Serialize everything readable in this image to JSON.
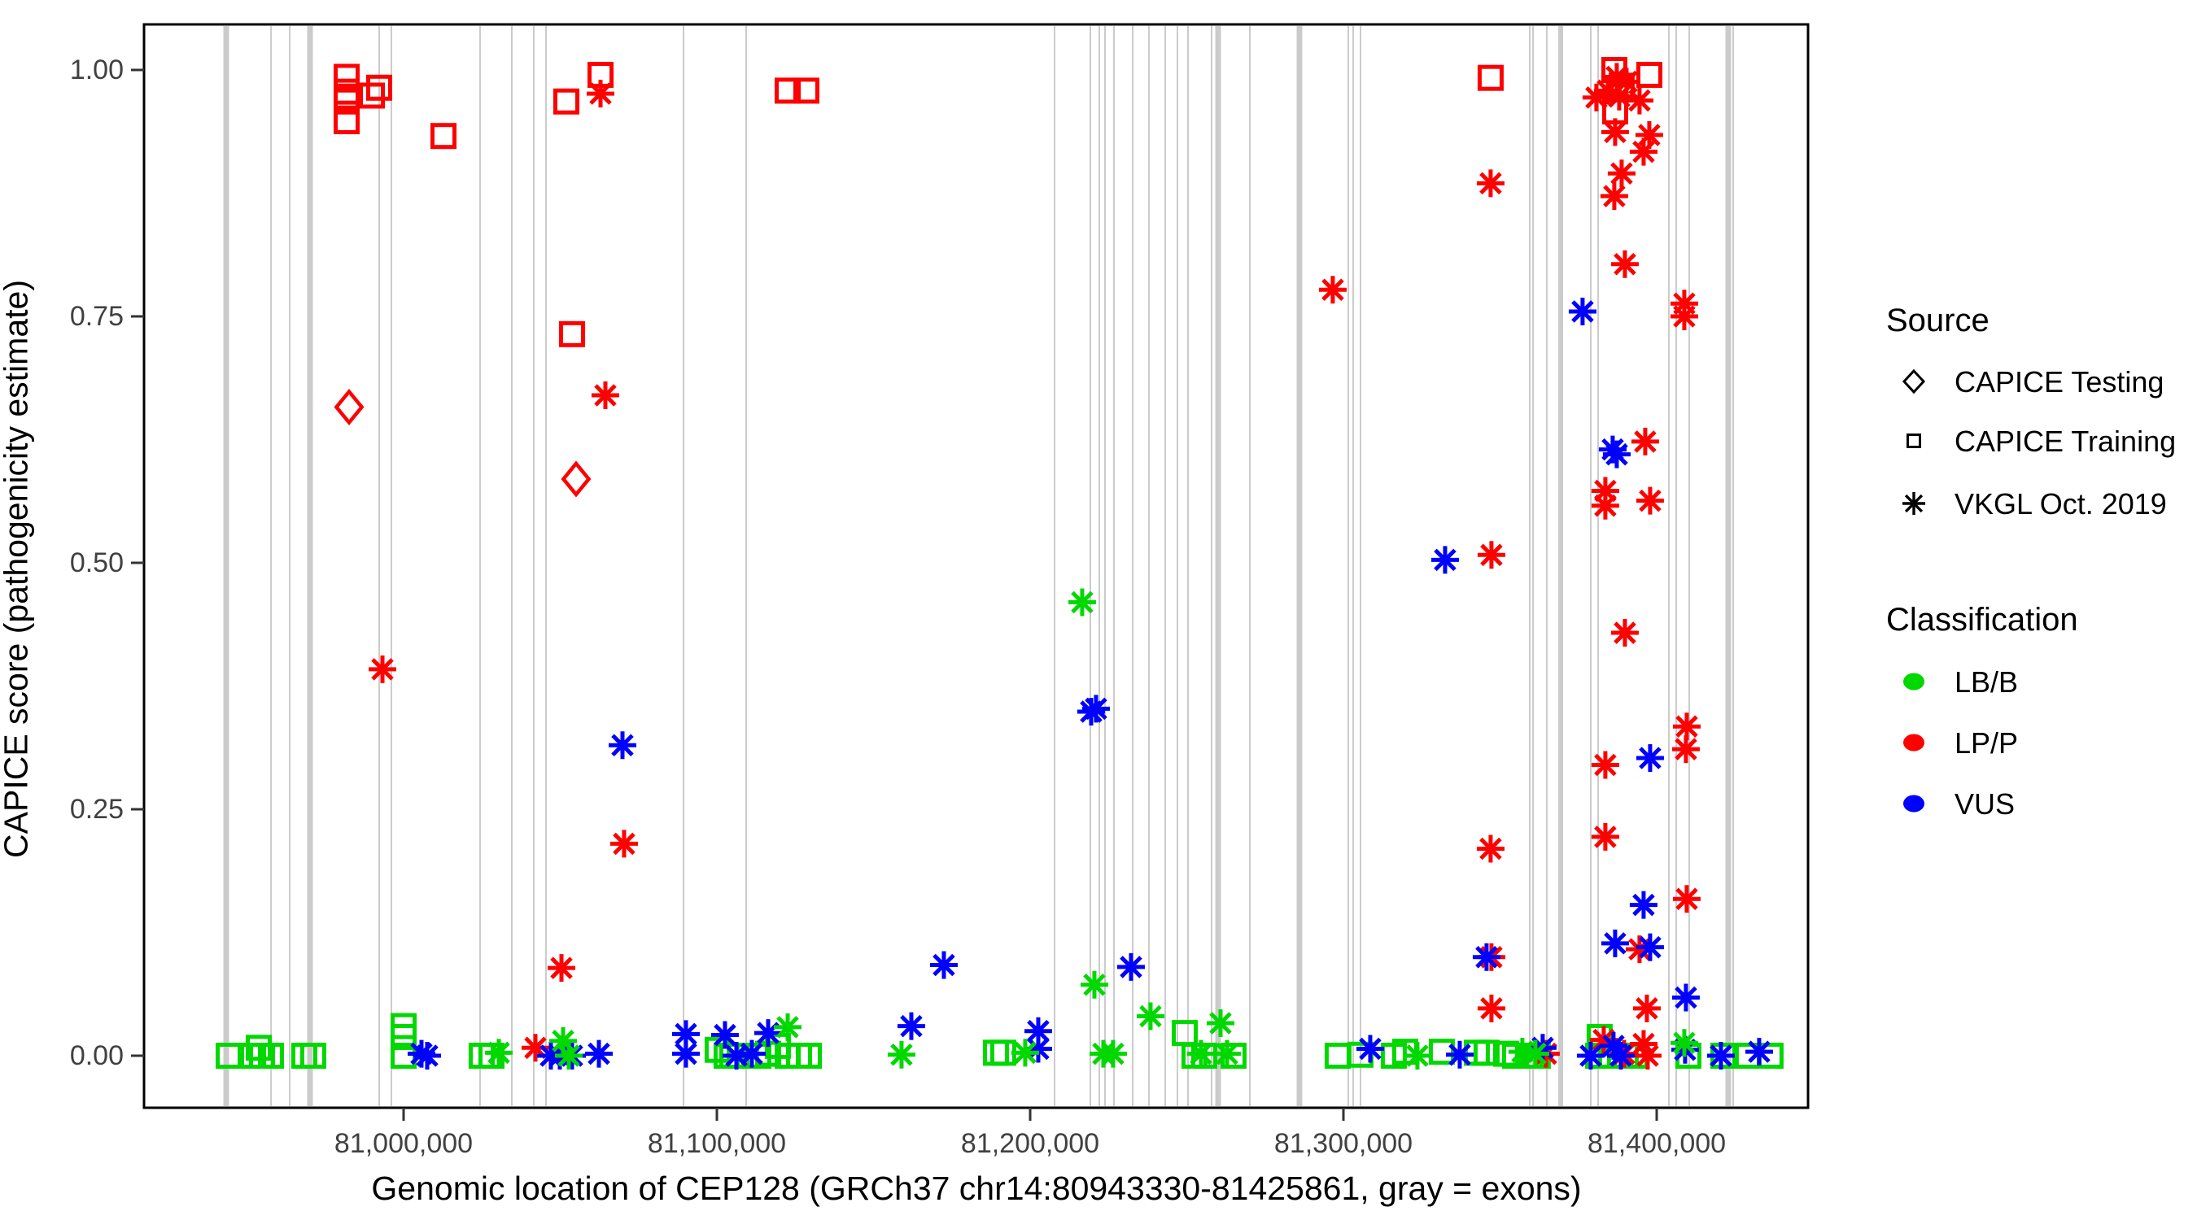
{
  "figure": {
    "x_axis_title": "Genomic location of CEP128 (GRCh37 chr14:80943330-81425861, gray = exons)",
    "y_axis_title": "CAPICE score (pathogenicity estimate)"
  },
  "legend": {
    "source": {
      "title": "Source",
      "items": [
        {
          "label": "CAPICE Testing",
          "marker": "diamond"
        },
        {
          "label": "CAPICE Training",
          "marker": "square"
        },
        {
          "label": "VKGL Oct. 2019",
          "marker": "asterisk"
        }
      ]
    },
    "classification": {
      "title": "Classification",
      "items": [
        {
          "label": "LB/B",
          "color": "#00D800"
        },
        {
          "label": "LP/P",
          "color": "#FF0000"
        },
        {
          "label": "VUS",
          "color": "#0000FF"
        }
      ]
    }
  },
  "chart_data": {
    "type": "scatter",
    "title": "",
    "xlabel": "Genomic location of CEP128 (GRCh37 chr14:80943330-81425861, gray = exons)",
    "ylabel": "CAPICE score (pathogenicity estimate)",
    "x_ticks": [
      {
        "value": 81000000,
        "label": "81,000,000"
      },
      {
        "value": 81100000,
        "label": "81,100,000"
      },
      {
        "value": 81200000,
        "label": "81,200,000"
      },
      {
        "value": 81300000,
        "label": "81,300,000"
      },
      {
        "value": 81400000,
        "label": "81,400,000"
      }
    ],
    "y_ticks": [
      {
        "value": 0.0,
        "label": "0.00"
      },
      {
        "value": 0.25,
        "label": "0.25"
      },
      {
        "value": 0.5,
        "label": "0.50"
      },
      {
        "value": 0.75,
        "label": "0.75"
      },
      {
        "value": 1.0,
        "label": "1.00"
      }
    ],
    "x_range": [
      80917000,
      81448500
    ],
    "y_range": [
      0,
      1
    ],
    "gene": {
      "name": "CEP128",
      "build": "GRCh37",
      "chromosome": "chr14",
      "start": 80943330,
      "end": 81425861
    },
    "legend_position": "right",
    "grid": false,
    "colors": {
      "LB/B": "#00D800",
      "LP/P": "#FF0000",
      "VUS": "#0000FF",
      "exon": "#CBCBCB",
      "panel_border": "#000000",
      "tick": "#333333"
    },
    "marker_by_source": {
      "CAPICE Testing": "diamond",
      "CAPICE Training": "square",
      "VKGL Oct. 2019": "asterisk"
    },
    "exons": [
      [
        80943380,
        3
      ],
      [
        80957700,
        1
      ],
      [
        80963640,
        1
      ],
      [
        80970130,
        3
      ],
      [
        80992200,
        1
      ],
      [
        80996100,
        1
      ],
      [
        81024400,
        1
      ],
      [
        81034540,
        1
      ],
      [
        81041550,
        1
      ],
      [
        81045450,
        1
      ],
      [
        81089350,
        1
      ],
      [
        81109350,
        1
      ],
      [
        81207790,
        1
      ],
      [
        81219220,
        1
      ],
      [
        81222080,
        1
      ],
      [
        81223900,
        1
      ],
      [
        81226750,
        1
      ],
      [
        81232730,
        1
      ],
      [
        81237920,
        1
      ],
      [
        81243120,
        1
      ],
      [
        81247010,
        1
      ],
      [
        81250390,
        1
      ],
      [
        81257920,
        1
      ],
      [
        81260000,
        3
      ],
      [
        81270130,
        1
      ],
      [
        81285970,
        3
      ],
      [
        81301550,
        1
      ],
      [
        81303110,
        1
      ],
      [
        81305450,
        1
      ],
      [
        81359470,
        1
      ],
      [
        81360510,
        1
      ],
      [
        81364920,
        1
      ],
      [
        81368820,
        1
      ],
      [
        81369600,
        2
      ],
      [
        81378950,
        1
      ],
      [
        81381290,
        1
      ],
      [
        81403880,
        1
      ],
      [
        81406220,
        1
      ],
      [
        81410380,
        1
      ],
      [
        81422840,
        3
      ],
      [
        81424400,
        1
      ]
    ],
    "series": [
      {
        "source": "CAPICE Testing",
        "classification": "LP/P",
        "points": [
          [
            80982600,
            0.658
          ],
          [
            81055060,
            0.585
          ]
        ]
      },
      {
        "source": "CAPICE Training",
        "classification": "LP/P",
        "points": [
          [
            80981820,
            0.993
          ],
          [
            80981820,
            0.978
          ],
          [
            80981820,
            0.973
          ],
          [
            80981820,
            0.968
          ],
          [
            80981820,
            0.948
          ],
          [
            80989870,
            0.974
          ],
          [
            80992210,
            0.982
          ],
          [
            81012730,
            0.933
          ],
          [
            81051950,
            0.968
          ],
          [
            81053770,
            0.732
          ],
          [
            81062860,
            0.995
          ],
          [
            81122600,
            0.979
          ],
          [
            81128570,
            0.979
          ],
          [
            81346990,
            0.992
          ],
          [
            81386470,
            1.0
          ],
          [
            81386730,
            0.958
          ],
          [
            81388810,
            0.984
          ],
          [
            81397640,
            0.995
          ]
        ]
      },
      {
        "source": "CAPICE Training",
        "classification": "LB/B",
        "points": [
          [
            80944160,
            0.0
          ],
          [
            80951950,
            0.0
          ],
          [
            80953770,
            0.008
          ],
          [
            80954810,
            0.0
          ],
          [
            80957670,
            0.0
          ],
          [
            80968310,
            0.0
          ],
          [
            80971160,
            0.0
          ],
          [
            81000000,
            0.03
          ],
          [
            81000000,
            0.019
          ],
          [
            81000000,
            0.0
          ],
          [
            81024930,
            0.0
          ],
          [
            81028050,
            0.0
          ],
          [
            81100250,
            0.006
          ],
          [
            81103100,
            0.0
          ],
          [
            81104920,
            0.0
          ],
          [
            81113230,
            0.0
          ],
          [
            81116360,
            0.002
          ],
          [
            81119470,
            0.01
          ],
          [
            81122600,
            0.0
          ],
          [
            81126230,
            0.0
          ],
          [
            81129350,
            0.0
          ],
          [
            81189080,
            0.003
          ],
          [
            81191420,
            0.003
          ],
          [
            81249350,
            0.023
          ],
          [
            81252460,
            0.0
          ],
          [
            81255580,
            0.0
          ],
          [
            81264920,
            0.0
          ],
          [
            81298160,
            0.0
          ],
          [
            81305430,
            0.001
          ],
          [
            81316080,
            0.0
          ],
          [
            81319720,
            0.004
          ],
          [
            81331410,
            0.004
          ],
          [
            81342580,
            0.003
          ],
          [
            81345690,
            0.003
          ],
          [
            81351920,
            0.002
          ],
          [
            81354780,
            0.0
          ],
          [
            81359450,
            0.0
          ],
          [
            81362050,
            0.0
          ],
          [
            81381280,
            0.0
          ],
          [
            81381800,
            0.019
          ],
          [
            81385430,
            0.0
          ],
          [
            81390110,
            0.0
          ],
          [
            81393220,
            0.0
          ],
          [
            81410110,
            0.0
          ],
          [
            81421280,
            0.0
          ],
          [
            81429070,
            0.0
          ],
          [
            81436340,
            0.0
          ]
        ]
      },
      {
        "source": "VKGL Oct. 2019",
        "classification": "LP/P",
        "points": [
          [
            80993250,
            0.392
          ],
          [
            81042080,
            0.008
          ],
          [
            81050390,
            0.089
          ],
          [
            81062860,
            0.976
          ],
          [
            81064410,
            0.67
          ],
          [
            81070380,
            0.215
          ],
          [
            81296600,
            0.777
          ],
          [
            81346990,
            0.885
          ],
          [
            81347250,
            0.508
          ],
          [
            81346990,
            0.21
          ],
          [
            81347250,
            0.1
          ],
          [
            81347250,
            0.048
          ],
          [
            81364650,
            0.002
          ],
          [
            81380750,
            0.972
          ],
          [
            81383090,
            0.016
          ],
          [
            81383610,
            0.573
          ],
          [
            81383610,
            0.558
          ],
          [
            81383610,
            0.295
          ],
          [
            81383610,
            0.222
          ],
          [
            81384390,
            0.979
          ],
          [
            81386470,
            0.872
          ],
          [
            81386730,
            0.937
          ],
          [
            81387250,
            0.993
          ],
          [
            81388030,
            0.973
          ],
          [
            81388810,
            0.895
          ],
          [
            81389590,
            0.002
          ],
          [
            81389850,
            0.803
          ],
          [
            81389850,
            0.429
          ],
          [
            81390370,
            0.988
          ],
          [
            81394520,
            0.969
          ],
          [
            81394520,
            0.108
          ],
          [
            81395820,
            0.917
          ],
          [
            81395820,
            0.012
          ],
          [
            81396340,
            0.623
          ],
          [
            81396860,
            0.048
          ],
          [
            81397120,
            0.0
          ],
          [
            81397640,
            0.934
          ],
          [
            81397900,
            0.563
          ],
          [
            81408810,
            0.763
          ],
          [
            81408810,
            0.75
          ],
          [
            81409330,
            0.311
          ],
          [
            81409590,
            0.334
          ],
          [
            81409590,
            0.159
          ]
        ]
      },
      {
        "source": "VKGL Oct. 2019",
        "classification": "VUS",
        "points": [
          [
            81005710,
            0.002
          ],
          [
            81007530,
            0.0
          ],
          [
            81047010,
            0.0
          ],
          [
            81049870,
            0.0
          ],
          [
            81053770,
            0.0
          ],
          [
            81062340,
            0.002
          ],
          [
            81069870,
            0.315
          ],
          [
            81090130,
            0.022
          ],
          [
            81090130,
            0.002
          ],
          [
            81102590,
            0.021
          ],
          [
            81106230,
            0.0
          ],
          [
            81111160,
            0.002
          ],
          [
            81116360,
            0.023
          ],
          [
            81162070,
            0.03
          ],
          [
            81172460,
            0.092
          ],
          [
            81202590,
            0.025
          ],
          [
            81202590,
            0.007
          ],
          [
            81219470,
            0.349
          ],
          [
            81221030,
            0.352
          ],
          [
            81232200,
            0.09
          ],
          [
            81308560,
            0.007
          ],
          [
            81332450,
            0.503
          ],
          [
            81337130,
            0.001
          ],
          [
            81345690,
            0.1
          ],
          [
            81363610,
            0.008
          ],
          [
            81376340,
            0.755
          ],
          [
            81378940,
            0.0
          ],
          [
            81385950,
            0.615
          ],
          [
            81386210,
            0.01
          ],
          [
            81386730,
            0.114
          ],
          [
            81387250,
            0.61
          ],
          [
            81388550,
            0.0
          ],
          [
            81395820,
            0.153
          ],
          [
            81397900,
            0.302
          ],
          [
            81397900,
            0.11
          ],
          [
            81409070,
            0.006
          ],
          [
            81409330,
            0.059
          ],
          [
            81420500,
            0.0
          ],
          [
            81432710,
            0.004
          ]
        ]
      },
      {
        "source": "VKGL Oct. 2019",
        "classification": "LB/B",
        "points": [
          [
            81030390,
            0.003
          ],
          [
            81050910,
            0.015
          ],
          [
            81052730,
            0.0
          ],
          [
            81122600,
            0.029
          ],
          [
            81158950,
            0.001
          ],
          [
            81198430,
            0.003
          ],
          [
            81216610,
            0.46
          ],
          [
            81220510,
            0.072
          ],
          [
            81223370,
            0.002
          ],
          [
            81226480,
            0.002
          ],
          [
            81238430,
            0.04
          ],
          [
            81254530,
            0.002
          ],
          [
            81260770,
            0.033
          ],
          [
            81262840,
            0.002
          ],
          [
            81323620,
            0.0
          ],
          [
            81357120,
            0.004
          ],
          [
            81361280,
            0.002
          ],
          [
            81408810,
            0.013
          ]
        ]
      }
    ]
  }
}
